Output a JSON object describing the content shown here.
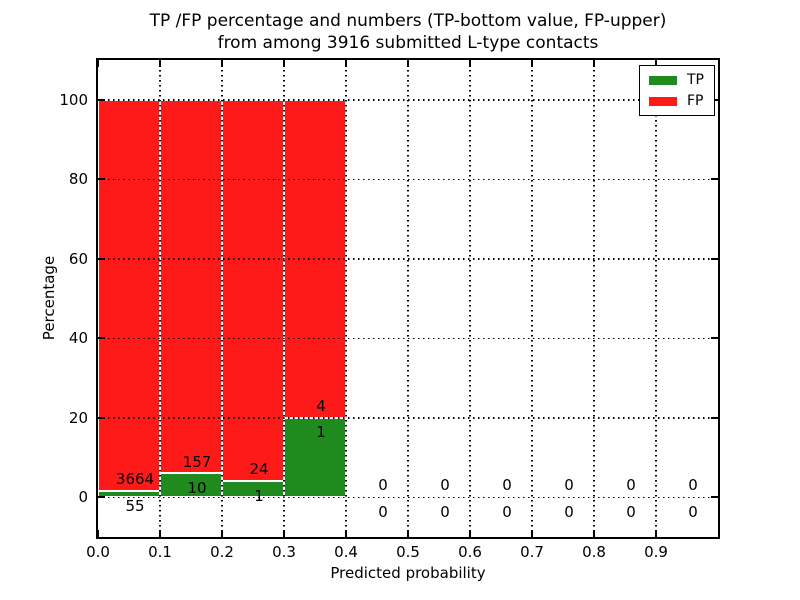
{
  "title": {
    "line1": "TP /FP percentage and numbers (TP-bottom value, FP-upper)",
    "line2": "from among 3916 submitted L-type contacts"
  },
  "legend": {
    "position": "upper right",
    "items": [
      {
        "label": "TP",
        "color": "#1f8b1f"
      },
      {
        "label": "FP",
        "color": "#ff1a1a"
      }
    ]
  },
  "colors": {
    "tp_green": "#1f8b1f",
    "fp_red": "#ff1a1a",
    "axes": "#000000",
    "background": "#ffffff"
  },
  "chart_data": {
    "type": "bar",
    "stacked": true,
    "title": "TP /FP percentage and numbers (TP-bottom value, FP-upper)\nfrom among 3916 submitted L-type contacts",
    "xlabel": "Predicted probability",
    "ylabel": "Percentage",
    "xlim": [
      0.0,
      1.0
    ],
    "ylim": [
      -10,
      110
    ],
    "xticks": [
      "0.0",
      "0.1",
      "0.2",
      "0.3",
      "0.4",
      "0.5",
      "0.6",
      "0.7",
      "0.8",
      "0.9"
    ],
    "yticks": [
      0,
      20,
      40,
      60,
      80,
      100
    ],
    "grid": "dotted",
    "legend_position": "upper right",
    "series": [
      {
        "name": "TP",
        "color": "#1f8b1f"
      },
      {
        "name": "FP",
        "color": "#ff1a1a"
      }
    ],
    "bins": [
      {
        "x_range": [
          0.0,
          0.1
        ],
        "tp": 55,
        "fp": 3664,
        "tp_pct": 1.48,
        "fp_pct": 98.52
      },
      {
        "x_range": [
          0.1,
          0.2
        ],
        "tp": 10,
        "fp": 157,
        "tp_pct": 5.99,
        "fp_pct": 94.01
      },
      {
        "x_range": [
          0.2,
          0.3
        ],
        "tp": 1,
        "fp": 24,
        "tp_pct": 4.0,
        "fp_pct": 96.0
      },
      {
        "x_range": [
          0.3,
          0.4
        ],
        "tp": 1,
        "fp": 4,
        "tp_pct": 20.0,
        "fp_pct": 80.0
      },
      {
        "x_range": [
          0.4,
          0.5
        ],
        "tp": 0,
        "fp": 0,
        "tp_pct": 0,
        "fp_pct": 0
      },
      {
        "x_range": [
          0.5,
          0.6
        ],
        "tp": 0,
        "fp": 0,
        "tp_pct": 0,
        "fp_pct": 0
      },
      {
        "x_range": [
          0.6,
          0.7
        ],
        "tp": 0,
        "fp": 0,
        "tp_pct": 0,
        "fp_pct": 0
      },
      {
        "x_range": [
          0.7,
          0.8
        ],
        "tp": 0,
        "fp": 0,
        "tp_pct": 0,
        "fp_pct": 0
      },
      {
        "x_range": [
          0.8,
          0.9
        ],
        "tp": 0,
        "fp": 0,
        "tp_pct": 0,
        "fp_pct": 0
      },
      {
        "x_range": [
          0.9,
          1.0
        ],
        "tp": 0,
        "fp": 0,
        "tp_pct": 0,
        "fp_pct": 0
      }
    ]
  }
}
